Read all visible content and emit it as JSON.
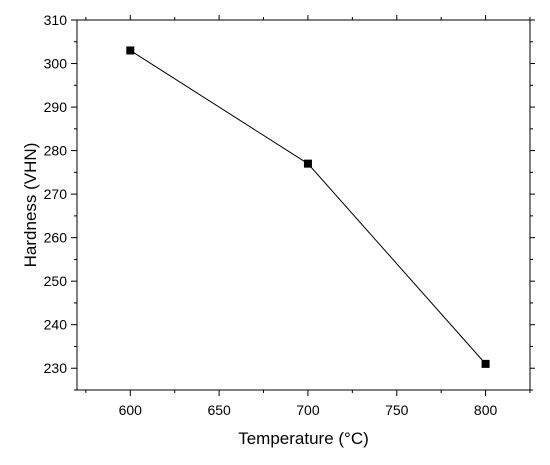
{
  "chart_data": {
    "type": "line",
    "title": "",
    "xlabel": "Temperature (°C)",
    "ylabel": "Hardness (VHN)",
    "xlim": [
      570,
      825
    ],
    "ylim": [
      225,
      310
    ],
    "x_ticks": [
      600,
      650,
      700,
      750,
      800
    ],
    "y_ticks": [
      230,
      240,
      250,
      260,
      270,
      280,
      290,
      300,
      310
    ],
    "grid": false,
    "legend": "none",
    "series": [
      {
        "x": [
          600,
          700,
          800
        ],
        "y": [
          303,
          277,
          231
        ],
        "marker": "square",
        "color": "#000000"
      }
    ]
  }
}
